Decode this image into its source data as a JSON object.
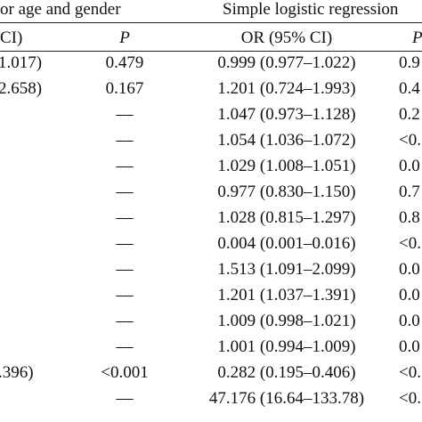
{
  "header": {
    "group_left": "or age and gender",
    "group_right": "Simple logistic regression",
    "col_ci_fragment": "CI)",
    "col_p_left": "P",
    "col_or": "OR (95% CI)",
    "col_p_right_fragment": "P"
  },
  "rows": [
    {
      "left_ci": "1.017)",
      "left_p": "0.479",
      "or_ci": "0.999 (0.977–1.022)",
      "right_p": "0.9"
    },
    {
      "left_ci": "2.658)",
      "left_p": "0.167",
      "or_ci": "1.201 (0.724–1.993)",
      "right_p": "0.4"
    },
    {
      "left_ci": "",
      "left_p": "—",
      "or_ci": "1.047 (0.973–1.128)",
      "right_p": "0.2"
    },
    {
      "left_ci": "",
      "left_p": "—",
      "or_ci": "1.054 (1.036–1.072)",
      "right_p": "<0."
    },
    {
      "left_ci": "",
      "left_p": "—",
      "or_ci": "1.029 (1.008–1.051)",
      "right_p": "0.0"
    },
    {
      "left_ci": "",
      "left_p": "—",
      "or_ci": "0.977 (0.830–1.150)",
      "right_p": "0.7"
    },
    {
      "left_ci": "",
      "left_p": "—",
      "or_ci": "1.028 (0.815–1.297)",
      "right_p": "0.8"
    },
    {
      "left_ci": "",
      "left_p": "—",
      "or_ci": "0.004 (0.001–0.016)",
      "right_p": "<0."
    },
    {
      "left_ci": "",
      "left_p": "—",
      "or_ci": "1.513 (1.091–2.099)",
      "right_p": "0.0"
    },
    {
      "left_ci": "",
      "left_p": "—",
      "or_ci": "1.201 (1.037–1.391)",
      "right_p": "0.0"
    },
    {
      "left_ci": "",
      "left_p": "—",
      "or_ci": "1.009 (0.998–1.021)",
      "right_p": "0.0"
    },
    {
      "left_ci": "",
      "left_p": "—",
      "or_ci": "1.001 (0.994–1.009)",
      "right_p": "0.0"
    },
    {
      "left_ci": ".396)",
      "left_p": "<0.001",
      "or_ci": "0.282 (0.195–0.406)",
      "right_p": "<0."
    },
    {
      "left_ci": "",
      "left_p": "—",
      "or_ci": "47.176 (16.64–133.78)",
      "right_p": "<0."
    }
  ]
}
